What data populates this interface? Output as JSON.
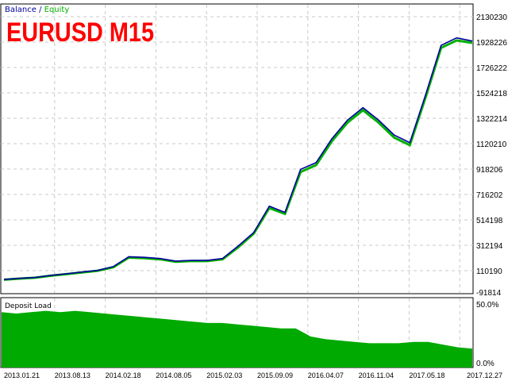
{
  "title": "EURUSD M15",
  "legend": {
    "balance": "Balance",
    "separator": " / ",
    "equity": "Equity"
  },
  "colors": {
    "balance": "#0000a0",
    "equity": "#00b000",
    "load": "#00aa00",
    "title": "#ff0000",
    "grid": "#c8c8c8"
  },
  "chart_data": [
    {
      "type": "line",
      "title": "EURUSD M15",
      "ylim": [
        -91814,
        2130230
      ],
      "yticks": [
        "2130230",
        "1928226",
        "1726222",
        "1524218",
        "1322214",
        "1120210",
        "918206",
        "716202",
        "514198",
        "312194",
        "110190",
        "-91814"
      ],
      "xticks": [
        "2013.01.21",
        "2013.08.13",
        "2014.02.18",
        "2014.08.05",
        "2015.02.03",
        "2015.09.09",
        "2016.04.07",
        "2016.11.04",
        "2017.05.18",
        "2017.12.27"
      ],
      "grid": true,
      "legend_placement": "top-left",
      "series": [
        {
          "name": "Balance",
          "values": [
            22000,
            31000,
            38000,
            55000,
            68000,
            82000,
            95000,
            125000,
            205000,
            200000,
            190000,
            170000,
            175000,
            175000,
            190000,
            290000,
            400000,
            610000,
            560000,
            905000,
            960000,
            1150000,
            1300000,
            1400000,
            1300000,
            1180000,
            1120000,
            1500000,
            1900000,
            1960000,
            1935000
          ]
        },
        {
          "name": "Equity",
          "values": [
            20000,
            29000,
            36000,
            52000,
            65000,
            79000,
            92000,
            120000,
            198000,
            193000,
            184000,
            165000,
            170000,
            170000,
            184000,
            280000,
            390000,
            595000,
            548000,
            885000,
            940000,
            1130000,
            1280000,
            1380000,
            1280000,
            1160000,
            1100000,
            1480000,
            1880000,
            1940000,
            1920000
          ]
        }
      ]
    },
    {
      "type": "area",
      "title": "Deposit Load",
      "ylim": [
        0,
        50
      ],
      "yticks": [
        "50.0%",
        "0.0%"
      ],
      "series": [
        {
          "name": "Deposit Load",
          "values": [
            41,
            40,
            41,
            42,
            41,
            42,
            41,
            40,
            39,
            38,
            37,
            36,
            35,
            34,
            33,
            33,
            32,
            31,
            30,
            29,
            29,
            23,
            21,
            20,
            19,
            18,
            18,
            18,
            19,
            19,
            17,
            15,
            14
          ]
        }
      ]
    }
  ]
}
